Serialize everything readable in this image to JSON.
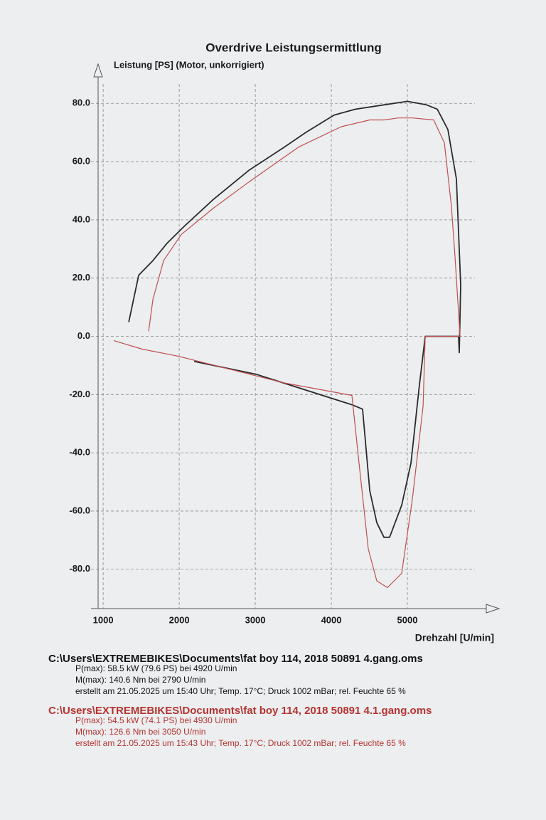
{
  "chart_data": {
    "type": "line",
    "title": "Overdrive Leistungsermittlung",
    "y_label": "Leistung [PS] (Motor, unkorrigiert)",
    "x_label": "Drehzahl [U/min]",
    "xlim": [
      840,
      6000
    ],
    "ylim": [
      -93.5,
      93.5
    ],
    "xticks": [
      1000,
      2000,
      3000,
      4000,
      5000
    ],
    "yticks": [
      {
        "value": 80,
        "label": "80.0"
      },
      {
        "value": 60,
        "label": "60.0"
      },
      {
        "value": 40,
        "label": "40.0"
      },
      {
        "value": 20,
        "label": "20.0"
      },
      {
        "value": 0,
        "label": "0.0"
      },
      {
        "value": -20,
        "label": "-20.0"
      },
      {
        "value": -40,
        "label": "-40.0"
      },
      {
        "value": -60,
        "label": "-60.0"
      },
      {
        "value": -80,
        "label": "-80.0"
      }
    ],
    "grid": true,
    "series": [
      {
        "name": "C:\\Users\\EXTREMEBIKES\\Documents\\fat boy 114, 2018 50891 4.gang.oms",
        "color": "#2b2b2b",
        "text_color": "#111111",
        "details": [
          "P(max): 58.5 kW (79.6 PS) bei 4920 U/min",
          "M(max): 140.6 Nm bei 2790 U/min",
          "erstellt am 21.05.2025 um 15:40 Uhr; Temp. 17°C; Druck 1002 mBar; rel. Feuchte 65 %"
        ],
        "x": [
          1336,
          1467,
          1654,
          1841,
          2075,
          2449,
          2916,
          3383,
          3664,
          4037,
          4318,
          4692,
          5000,
          5252,
          5393,
          5533,
          5645,
          5701,
          5682,
          5673,
          5234,
          5159,
          5047,
          4925,
          4766,
          4692,
          4598,
          4505,
          4411,
          4271,
          3009,
          2196
        ],
        "values": [
          4.9,
          21,
          26,
          32,
          38,
          47,
          57,
          65,
          70,
          76,
          78,
          79.5,
          80.7,
          79.5,
          78,
          71,
          54,
          17.6,
          -5.6,
          0,
          0,
          -16.6,
          -43.5,
          -58,
          -69,
          -69,
          -64,
          -53,
          -25,
          -23.5,
          -13,
          -8.6
        ]
      },
      {
        "name": "C:\\Users\\EXTREMEBIKES\\Documents\\fat boy 114, 2018 50891 4.1.gang.oms",
        "color": "#c0504d",
        "text_color": "#b5332e",
        "details": [
          "P(max): 54.5 kW (74.1 PS) bei 4930 U/min",
          "M(max): 126.6 Nm bei 3050 U/min",
          "erstellt am 21.05.2025 um 15:43 Uhr; Temp. 17°C; Druck 1002 mBar; rel. Feuchte 65 %"
        ],
        "x": [
          1598,
          1654,
          1794,
          2028,
          2449,
          2916,
          3570,
          4131,
          4505,
          4692,
          4879,
          5065,
          5346,
          5486,
          5579,
          5626,
          5692,
          5234,
          5206,
          5065,
          4925,
          4738,
          4598,
          4486,
          4364,
          4271,
          3383,
          1981,
          1514,
          1140
        ],
        "values": [
          1.7,
          12.7,
          26,
          35,
          44,
          53,
          65,
          72,
          74.3,
          74.3,
          75,
          75,
          74.3,
          66.5,
          44.5,
          27.4,
          0,
          0,
          -24,
          -56,
          -81.4,
          -86.3,
          -84,
          -73,
          -43.5,
          -20.3,
          -16,
          -6.8,
          -4.4,
          -1.5
        ]
      }
    ]
  }
}
